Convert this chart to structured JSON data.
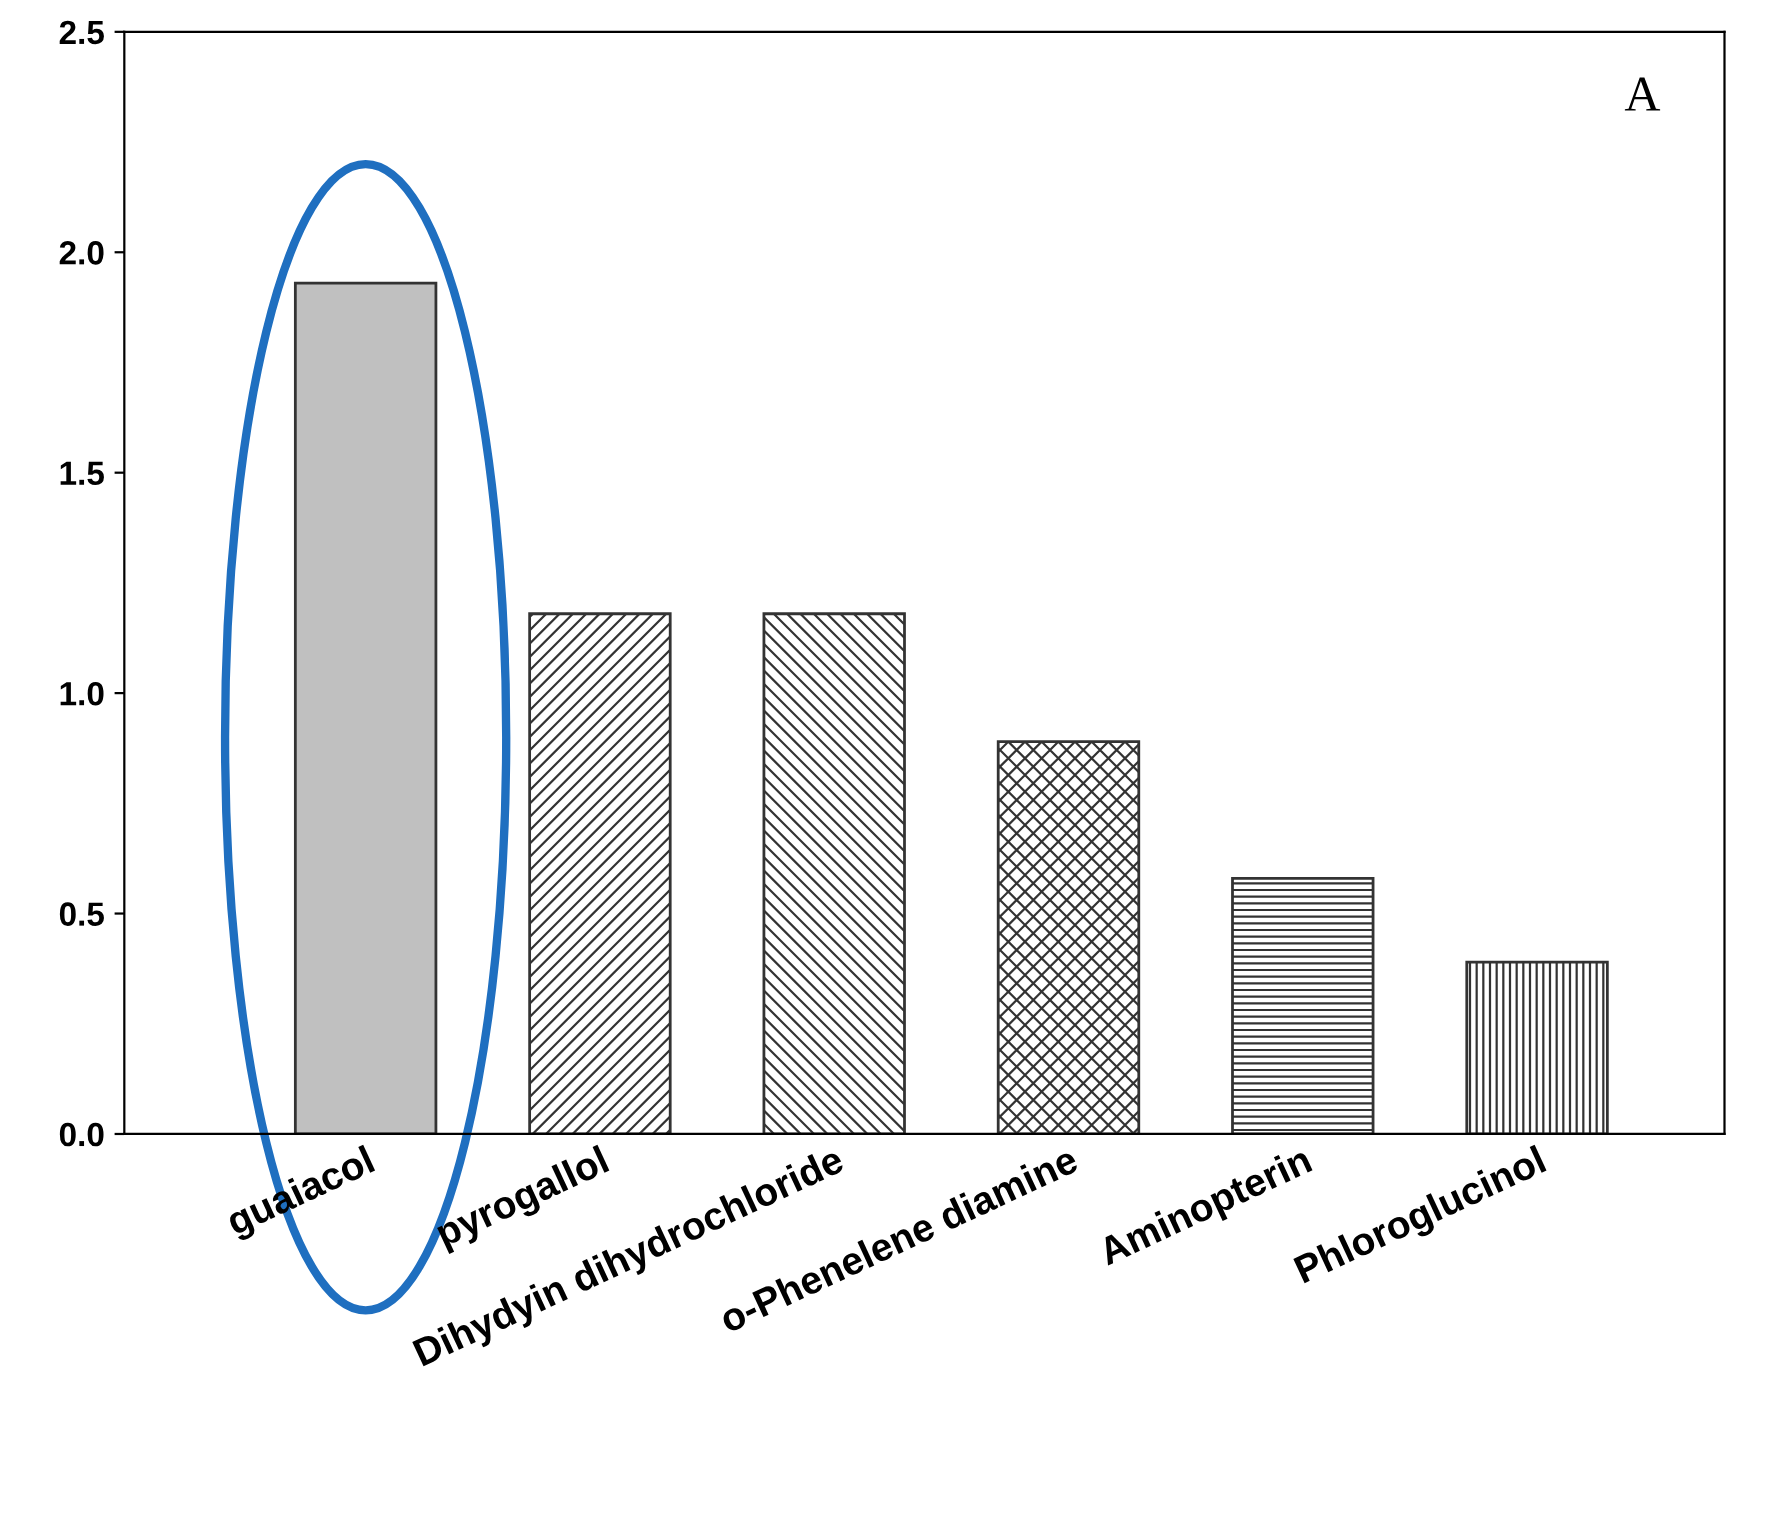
{
  "chart_data": {
    "type": "bar",
    "categories": [
      "guaiacol",
      "pyrogallol",
      "Dihydyin dihydrochloride",
      "o-Phenelene diamine",
      "Aminopterin",
      "Phloroglucinol"
    ],
    "values": [
      1.93,
      1.18,
      1.18,
      0.89,
      0.58,
      0.39
    ],
    "colors": [
      "#c0c0c0",
      "#333333",
      "#333333",
      "#333333",
      "#333333",
      "#333333"
    ],
    "ylim": [
      0,
      2.5
    ],
    "yticks": [
      {
        "value": 0,
        "label": "0.0"
      },
      {
        "value": 0.5,
        "label": "0.5"
      },
      {
        "value": 1.0,
        "label": "1.0"
      },
      {
        "value": 1.5,
        "label": "1.5"
      },
      {
        "value": 2.0,
        "label": "2.0"
      },
      {
        "value": 2.5,
        "label": "2.5"
      }
    ],
    "annotations": [
      "A"
    ],
    "grid": false,
    "legend": false
  }
}
